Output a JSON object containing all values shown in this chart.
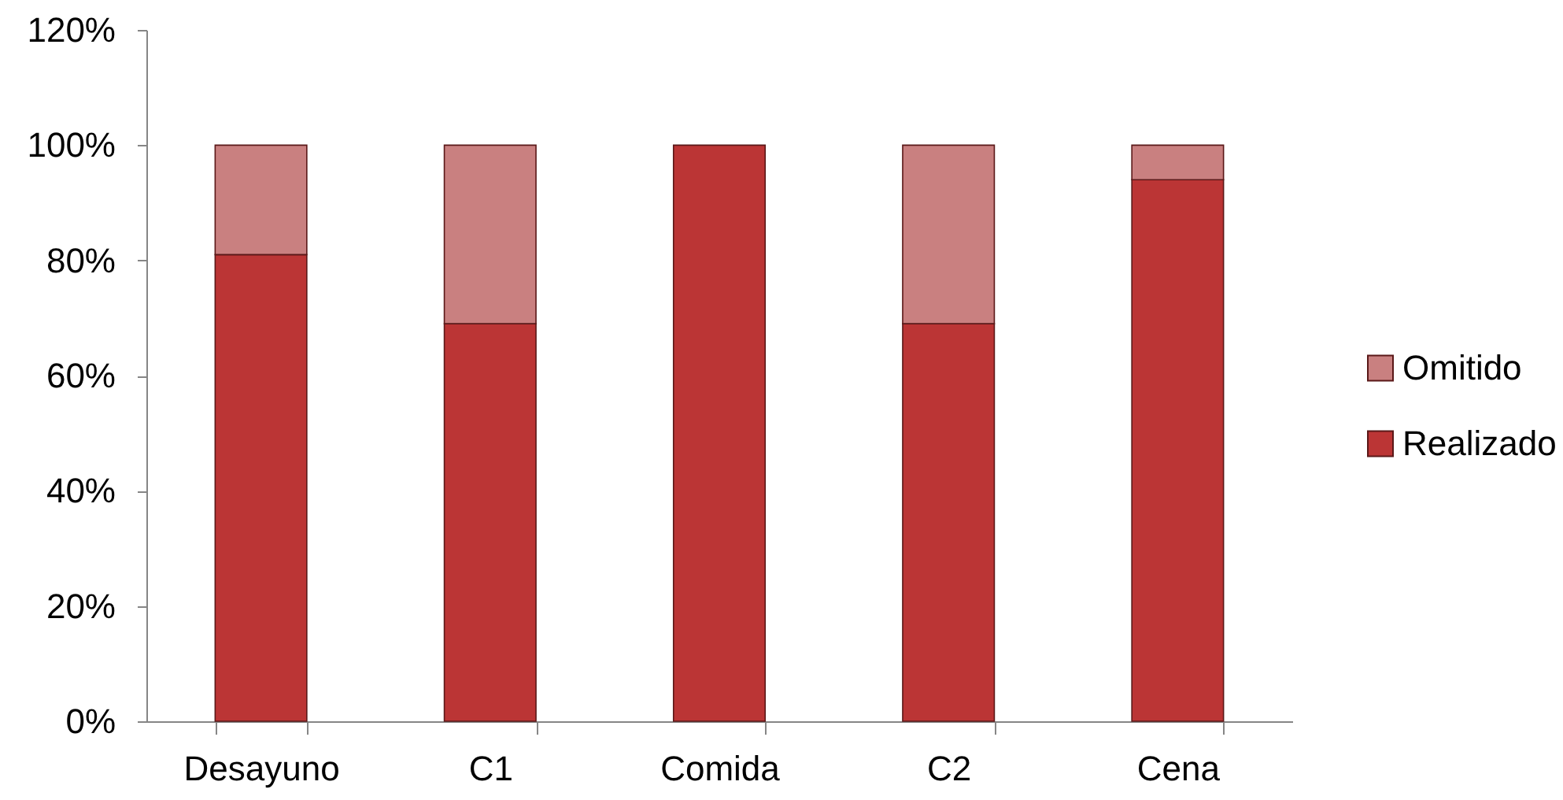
{
  "chart_data": {
    "type": "bar",
    "stacked": true,
    "categories": [
      "Desayuno",
      "C1",
      "Comida",
      "C2",
      "Cena"
    ],
    "series": [
      {
        "name": "Realizado",
        "color": "#bb3535",
        "values": [
          81,
          69,
          100,
          69,
          94
        ]
      },
      {
        "name": "Omitido",
        "color": "#c98080",
        "values": [
          19,
          31,
          null,
          31,
          6
        ]
      }
    ],
    "ylim": [
      0,
      120
    ],
    "yticks": [
      {
        "value": 0,
        "label": "0%"
      },
      {
        "value": 20,
        "label": "20%"
      },
      {
        "value": 40,
        "label": "40%"
      },
      {
        "value": 60,
        "label": "60%"
      },
      {
        "value": 80,
        "label": "80%"
      },
      {
        "value": 100,
        "label": "100%"
      },
      {
        "value": 120,
        "label": "120%"
      }
    ],
    "legend": "right"
  }
}
